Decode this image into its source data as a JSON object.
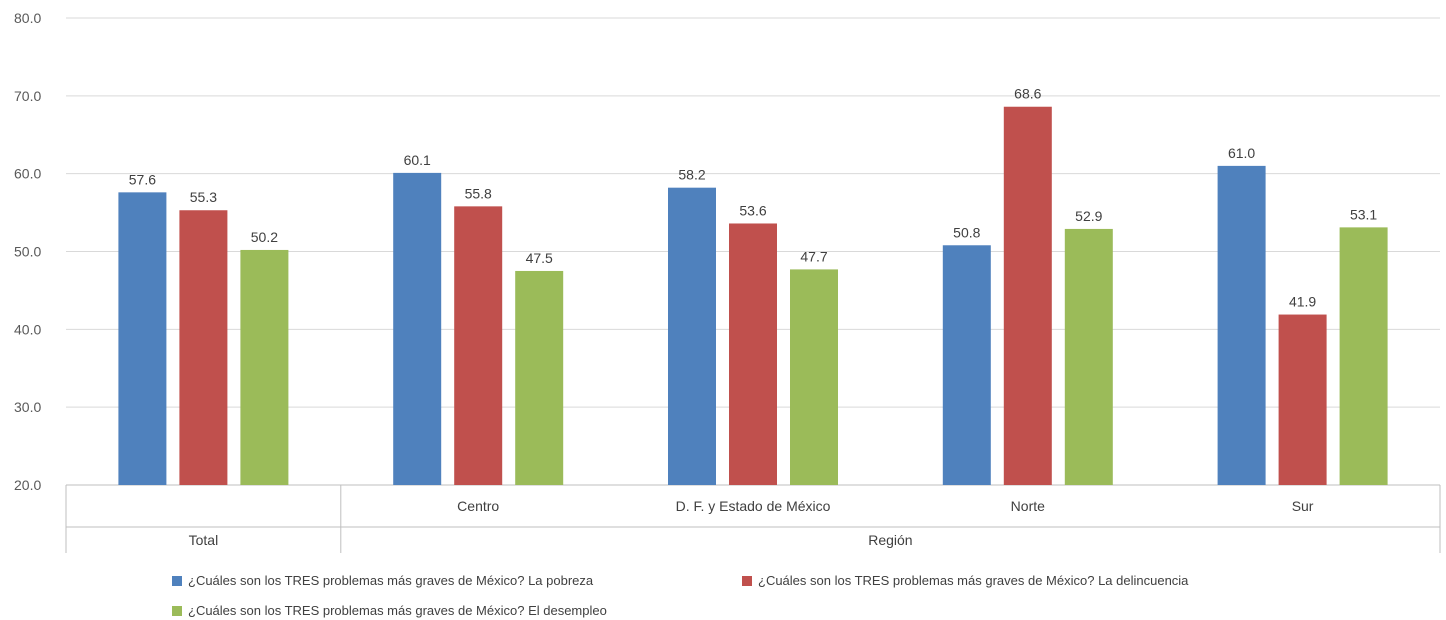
{
  "chart_data": {
    "type": "bar",
    "y_ticks": [
      "20.0",
      "30.0",
      "40.0",
      "50.0",
      "60.0",
      "70.0",
      "80.0"
    ],
    "ylim": [
      20,
      80
    ],
    "grid": true,
    "legend_position": "bottom",
    "categories": [
      "Total",
      "Centro",
      "D. F. y Estado de México",
      "Norte",
      "Sur"
    ],
    "category_groups": [
      {
        "label": "Total",
        "categories": [
          "Total"
        ],
        "show_subcategory_labels": false
      },
      {
        "label": "Región",
        "categories": [
          "Centro",
          "D. F. y Estado de México",
          "Norte",
          "Sur"
        ],
        "show_subcategory_labels": true
      }
    ],
    "series": [
      {
        "name": "¿Cuáles son los TRES problemas más graves de México? La pobreza",
        "color": "#4F81BD",
        "values": [
          57.6,
          60.1,
          58.2,
          50.8,
          61.0
        ],
        "labels": [
          "57.6",
          "60.1",
          "58.2",
          "50.8",
          "61.0"
        ]
      },
      {
        "name": "¿Cuáles son los TRES problemas más graves de México? La delincuencia",
        "color": "#C0504D",
        "values": [
          55.3,
          55.8,
          53.6,
          68.6,
          41.9
        ],
        "labels": [
          "55.3",
          "55.8",
          "53.6",
          "68.6",
          "41.9"
        ]
      },
      {
        "name": "¿Cuáles son los TRES problemas más graves de México? El desempleo",
        "color": "#9BBB59",
        "values": [
          50.2,
          47.5,
          47.7,
          52.9,
          53.1
        ],
        "labels": [
          "50.2",
          "47.5",
          "47.7",
          "52.9",
          "53.1"
        ]
      }
    ]
  }
}
